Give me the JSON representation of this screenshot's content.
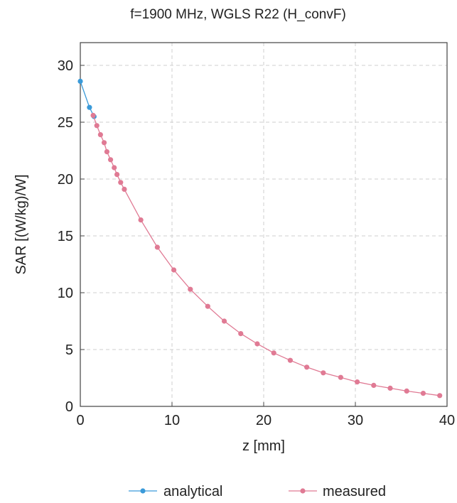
{
  "chart_data": {
    "type": "line",
    "title": "f=1900 MHz, WGLS R22 (H_convF)",
    "xlabel": "z [mm]",
    "ylabel": "SAR [(W/kg)/W]",
    "xlim": [
      0,
      40
    ],
    "ylim": [
      0,
      32
    ],
    "xticks": [
      "0",
      "10",
      "20",
      "30",
      "40"
    ],
    "yticks": [
      "0",
      "5",
      "10",
      "15",
      "20",
      "25",
      "30"
    ],
    "grid": true,
    "legend": "bottom",
    "series": [
      {
        "name": "analytical",
        "color": "#3a9ad9",
        "x": [
          0,
          1,
          1.5
        ],
        "y": [
          28.6,
          26.3,
          25.5
        ]
      },
      {
        "name": "measured",
        "color": "#e07a94",
        "x": [
          1.4,
          1.8,
          2.2,
          2.6,
          2.9,
          3.3,
          3.7,
          4.0,
          4.4,
          4.8,
          6.6,
          8.4,
          10.2,
          12.0,
          13.9,
          15.7,
          17.5,
          19.3,
          21.1,
          22.9,
          24.7,
          26.5,
          28.4,
          30.2,
          32.0,
          33.8,
          35.6,
          37.4,
          39.2
        ],
        "y": [
          25.6,
          24.7,
          23.9,
          23.2,
          22.4,
          21.7,
          21.0,
          20.4,
          19.7,
          19.1,
          16.4,
          14.0,
          12.0,
          10.3,
          8.8,
          7.5,
          6.4,
          5.5,
          4.7,
          4.05,
          3.45,
          2.95,
          2.55,
          2.15,
          1.85,
          1.6,
          1.35,
          1.15,
          0.95
        ]
      }
    ]
  }
}
